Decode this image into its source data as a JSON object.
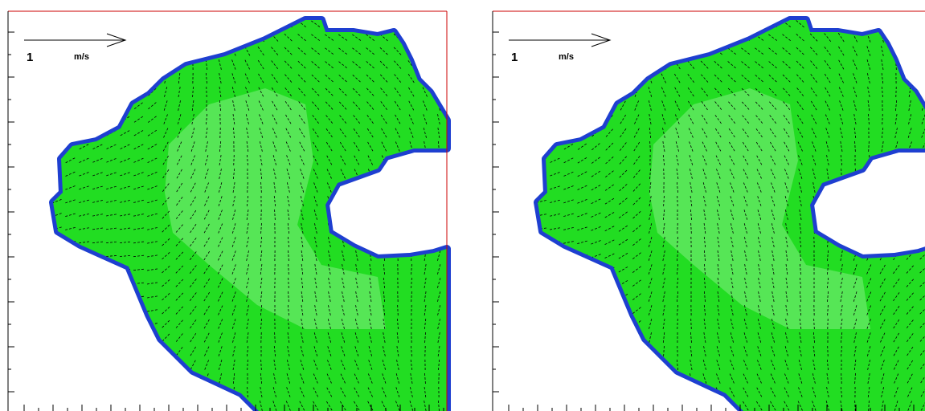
{
  "panels": [
    {
      "scale_value": "1",
      "scale_unit": "m/s"
    },
    {
      "scale_value": "1",
      "scale_unit": "m/s"
    }
  ]
}
